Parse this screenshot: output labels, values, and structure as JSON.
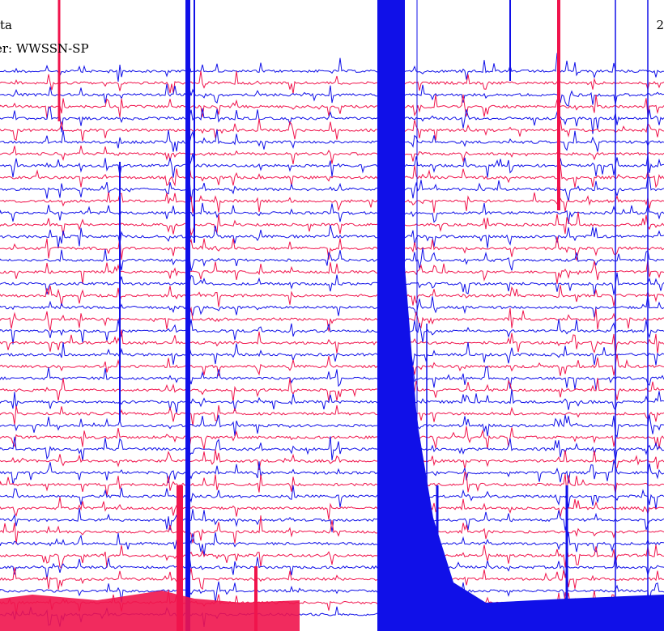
{
  "header": {
    "title_left": "ta",
    "title_right": "2",
    "filter": "er: WWSSN-SP"
  },
  "colors": {
    "trace_a": "#1010e8",
    "trace_b": "#f0144c",
    "background": "#ffffff"
  },
  "chart_data": {
    "type": "line",
    "title": "",
    "xlabel": "",
    "ylabel": "",
    "trace_count": 47,
    "color_cycle": [
      "#1010e8",
      "#f0144c",
      "#1010e8",
      "#f0144c"
    ],
    "saturated_bands": [
      {
        "color": "#1010e8",
        "note": "continuous clipped signal"
      }
    ],
    "grid": false,
    "legend": "none"
  }
}
